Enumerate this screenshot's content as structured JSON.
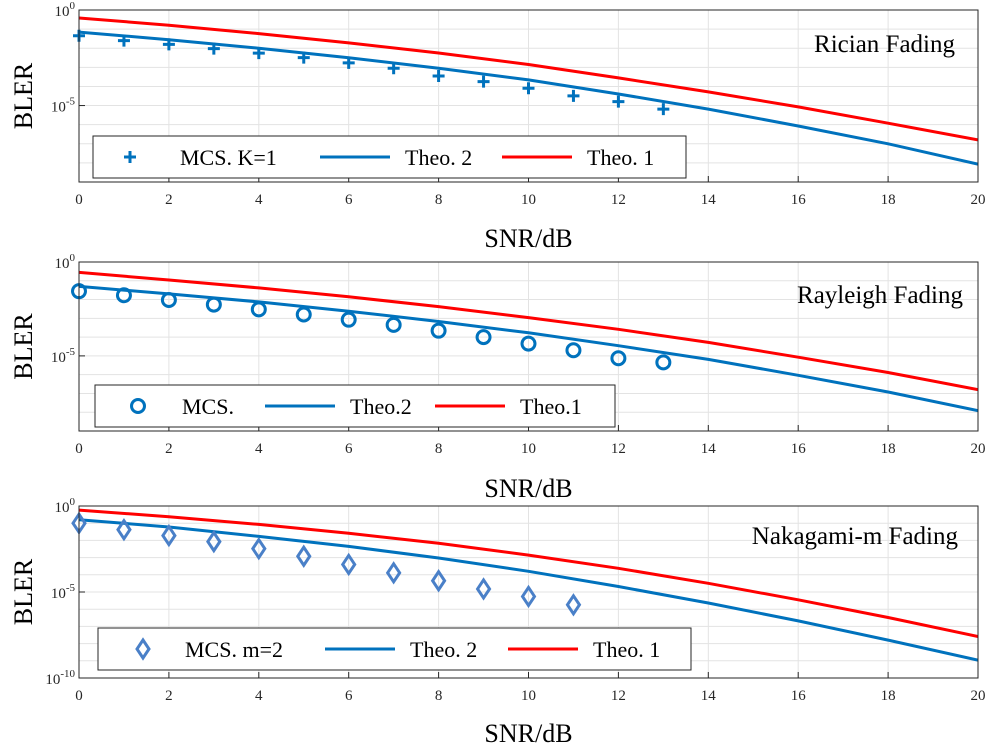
{
  "chart_data": [
    {
      "type": "line",
      "panel_label": "Rician Fading",
      "xlabel": "SNR/dB",
      "ylabel": "BLER",
      "xlim": [
        0,
        20
      ],
      "ylim": [
        1e-09,
        1
      ],
      "yscale": "log",
      "grid": true,
      "legend_placement": "bottom-left",
      "xticks": [
        "0",
        "2",
        "4",
        "6",
        "8",
        "10",
        "12",
        "14",
        "16",
        "18",
        "20"
      ],
      "yticks": [
        {
          "base": "10",
          "exp": "0",
          "value": 1
        },
        {
          "base": "10",
          "exp": "-5",
          "value": 1e-05
        }
      ],
      "series": [
        {
          "name": "MCS. K=1",
          "marker": "plus",
          "color": "#0072BD",
          "x": [
            0,
            1,
            2,
            3,
            4,
            5,
            6,
            7,
            8,
            9,
            10,
            11,
            12,
            13
          ],
          "y": [
            0.045,
            0.025,
            0.016,
            0.0095,
            0.0055,
            0.0032,
            0.0017,
            0.0009,
            0.00035,
            0.00018,
            8e-05,
            3.2e-05,
            1.6e-05,
            6.5e-06
          ]
        },
        {
          "name": "Theo. 2",
          "marker": "line",
          "color": "#0072BD",
          "x": [
            0,
            2,
            4,
            6,
            8,
            10,
            12,
            14,
            16,
            18,
            20
          ],
          "y": [
            0.07,
            0.028,
            0.01,
            0.0032,
            0.0009,
            0.00022,
            4e-05,
            6.5e-06,
            8.5e-07,
            1e-07,
            8.5e-09
          ]
        },
        {
          "name": "Theo. 1",
          "marker": "line",
          "color": "#FF0000",
          "x": [
            0,
            2,
            4,
            6,
            8,
            10,
            12,
            14,
            16,
            18,
            20
          ],
          "y": [
            0.38,
            0.16,
            0.058,
            0.019,
            0.0056,
            0.0014,
            0.00028,
            5.2e-05,
            8.5e-06,
            1.2e-06,
            1.6e-07
          ]
        }
      ]
    },
    {
      "type": "line",
      "panel_label": "Rayleigh Fading",
      "xlabel": "SNR/dB",
      "ylabel": "BLER",
      "xlim": [
        0,
        20
      ],
      "ylim": [
        1e-09,
        1
      ],
      "yscale": "log",
      "grid": true,
      "legend_placement": "bottom-left",
      "xticks": [
        "0",
        "2",
        "4",
        "6",
        "8",
        "10",
        "12",
        "14",
        "16",
        "18",
        "20"
      ],
      "yticks": [
        {
          "base": "10",
          "exp": "0",
          "value": 1
        },
        {
          "base": "10",
          "exp": "-5",
          "value": 1e-05
        }
      ],
      "series": [
        {
          "name": "MCS.",
          "marker": "circle",
          "color": "#0072BD",
          "x": [
            0,
            1,
            2,
            3,
            4,
            5,
            6,
            7,
            8,
            9,
            10,
            11,
            12,
            13
          ],
          "y": [
            0.028,
            0.017,
            0.0095,
            0.0054,
            0.003,
            0.0016,
            0.00085,
            0.00045,
            0.00022,
            0.0001,
            4.5e-05,
            2e-05,
            7.5e-06,
            4.5e-06
          ]
        },
        {
          "name": "Theo.2",
          "marker": "line",
          "color": "#0072BD",
          "x": [
            0,
            2,
            4,
            6,
            8,
            10,
            12,
            14,
            16,
            18,
            20
          ],
          "y": [
            0.05,
            0.02,
            0.0075,
            0.0024,
            0.00068,
            0.00017,
            3.5e-05,
            6.5e-06,
            9.2e-07,
            1.2e-07,
            1.2e-08
          ]
        },
        {
          "name": "Theo.1",
          "marker": "line",
          "color": "#FF0000",
          "x": [
            0,
            2,
            4,
            6,
            8,
            10,
            12,
            14,
            16,
            18,
            20
          ],
          "y": [
            0.28,
            0.11,
            0.042,
            0.014,
            0.0042,
            0.0011,
            0.00026,
            5.2e-05,
            8.5e-06,
            1.3e-06,
            1.6e-07
          ]
        }
      ]
    },
    {
      "type": "line",
      "panel_label": "Nakagami-m Fading",
      "xlabel": "SNR/dB",
      "ylabel": "BLER",
      "xlim": [
        0,
        20
      ],
      "ylim": [
        1e-10,
        1
      ],
      "yscale": "log",
      "grid": true,
      "legend_placement": "bottom-left",
      "xticks": [
        "0",
        "2",
        "4",
        "6",
        "8",
        "10",
        "12",
        "14",
        "16",
        "18",
        "20"
      ],
      "yticks": [
        {
          "base": "10",
          "exp": "0",
          "value": 1
        },
        {
          "base": "10",
          "exp": "-5",
          "value": 1e-05
        },
        {
          "base": "10",
          "exp": "-10",
          "value": 1e-10
        }
      ],
      "series": [
        {
          "name": "MCS. m=2",
          "marker": "diamond",
          "color": "#4A80C8",
          "x": [
            0,
            1,
            2,
            3,
            4,
            5,
            6,
            7,
            8,
            9,
            10,
            11
          ],
          "y": [
            0.1,
            0.042,
            0.019,
            0.0085,
            0.0033,
            0.0012,
            0.0004,
            0.00013,
            4.5e-05,
            1.5e-05,
            5.5e-06,
            1.8e-06
          ]
        },
        {
          "name": "Theo. 2",
          "marker": "line",
          "color": "#0072BD",
          "x": [
            0,
            2,
            4,
            6,
            8,
            10,
            12,
            14,
            16,
            18,
            20
          ],
          "y": [
            0.16,
            0.06,
            0.017,
            0.0045,
            0.00095,
            0.00016,
            2.1e-05,
            2.3e-06,
            2.1e-07,
            1.6e-08,
            1.1e-09
          ]
        },
        {
          "name": "Theo. 1",
          "marker": "line",
          "color": "#FF0000",
          "x": [
            0,
            2,
            4,
            6,
            8,
            10,
            12,
            14,
            16,
            18,
            20
          ],
          "y": [
            0.58,
            0.24,
            0.085,
            0.026,
            0.0068,
            0.0014,
            0.00024,
            3.2e-05,
            3.5e-06,
            3.3e-07,
            2.6e-08
          ]
        }
      ]
    }
  ]
}
